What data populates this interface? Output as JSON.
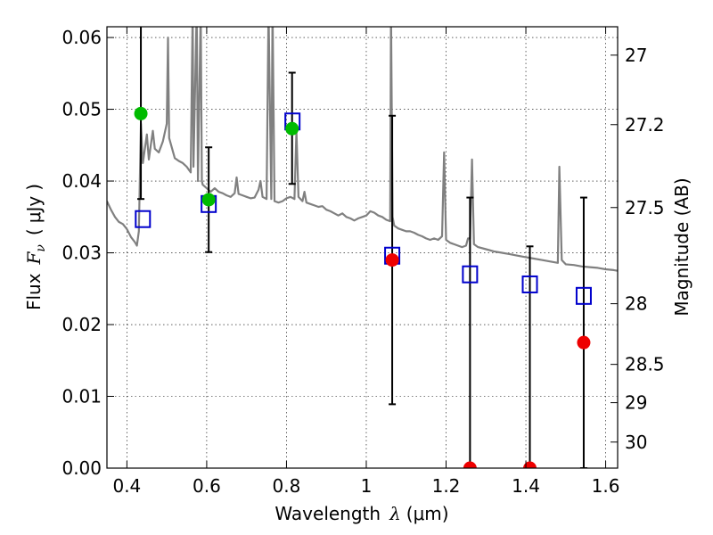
{
  "chart_data": {
    "type": "scatter",
    "xlabel_prefix": "Wavelength",
    "xlabel_symbol": "λ",
    "xlabel_unit": "(μm)",
    "ylabel_prefix": "Flux",
    "ylabel_symbol": "F",
    "ylabel_subscript": "ν",
    "ylabel_unit": "μJy",
    "y2label": "Magnitude (AB)",
    "xlim": [
      0.35,
      1.63
    ],
    "ylim": [
      0.0,
      0.0615
    ],
    "x_ticks": [
      0.4,
      0.6,
      0.8,
      1.0,
      1.2,
      1.4,
      1.6
    ],
    "x_tick_labels": [
      "0.4",
      "0.6",
      "0.8",
      "1",
      "1.2",
      "1.4",
      "1.6"
    ],
    "y_ticks": [
      0.0,
      0.01,
      0.02,
      0.03,
      0.04,
      0.05,
      0.06
    ],
    "y_tick_labels": [
      "0.00",
      "0.01",
      "0.02",
      "0.03",
      "0.04",
      "0.05",
      "0.06"
    ],
    "mag_ticks": [
      27,
      27.2,
      27.5,
      28,
      28.5,
      29,
      30
    ],
    "mag_tick_labels": [
      "27",
      "27.2",
      "27.5",
      "28",
      "28.5",
      "29",
      "30"
    ],
    "grid": true,
    "colors": {
      "model_line": "#808080",
      "model_points": "#0000cc",
      "detections": "#00bb00",
      "nondetections": "#ee0000",
      "errorbars": "#000000"
    },
    "model_spectrum": [
      [
        0.35,
        0.0372
      ],
      [
        0.36,
        0.036
      ],
      [
        0.37,
        0.035
      ],
      [
        0.38,
        0.0343
      ],
      [
        0.39,
        0.034
      ],
      [
        0.4,
        0.0333
      ],
      [
        0.41,
        0.0322
      ],
      [
        0.42,
        0.0315
      ],
      [
        0.425,
        0.031
      ],
      [
        0.43,
        0.033
      ],
      [
        0.435,
        0.048
      ],
      [
        0.44,
        0.0425
      ],
      [
        0.45,
        0.0465
      ],
      [
        0.455,
        0.043
      ],
      [
        0.46,
        0.045
      ],
      [
        0.465,
        0.047
      ],
      [
        0.47,
        0.0445
      ],
      [
        0.48,
        0.044
      ],
      [
        0.49,
        0.0455
      ],
      [
        0.5,
        0.048
      ],
      [
        0.503,
        0.06
      ],
      [
        0.506,
        0.046
      ],
      [
        0.52,
        0.0432
      ],
      [
        0.53,
        0.0428
      ],
      [
        0.54,
        0.0425
      ],
      [
        0.55,
        0.042
      ],
      [
        0.56,
        0.0412
      ],
      [
        0.565,
        0.064
      ],
      [
        0.567,
        0.042
      ],
      [
        0.575,
        0.064
      ],
      [
        0.578,
        0.04
      ],
      [
        0.585,
        0.064
      ],
      [
        0.588,
        0.04
      ],
      [
        0.59,
        0.0395
      ],
      [
        0.6,
        0.039
      ],
      [
        0.61,
        0.0385
      ],
      [
        0.62,
        0.039
      ],
      [
        0.63,
        0.0385
      ],
      [
        0.64,
        0.0383
      ],
      [
        0.65,
        0.038
      ],
      [
        0.66,
        0.0378
      ],
      [
        0.67,
        0.0383
      ],
      [
        0.675,
        0.0405
      ],
      [
        0.68,
        0.0382
      ],
      [
        0.69,
        0.038
      ],
      [
        0.7,
        0.0378
      ],
      [
        0.71,
        0.0376
      ],
      [
        0.72,
        0.0377
      ],
      [
        0.73,
        0.0388
      ],
      [
        0.735,
        0.04
      ],
      [
        0.74,
        0.0378
      ],
      [
        0.75,
        0.0375
      ],
      [
        0.755,
        0.064
      ],
      [
        0.762,
        0.0375
      ],
      [
        0.765,
        0.064
      ],
      [
        0.77,
        0.0372
      ],
      [
        0.78,
        0.037
      ],
      [
        0.79,
        0.0372
      ],
      [
        0.8,
        0.0376
      ],
      [
        0.81,
        0.0378
      ],
      [
        0.82,
        0.0375
      ],
      [
        0.825,
        0.047
      ],
      [
        0.83,
        0.0378
      ],
      [
        0.84,
        0.0372
      ],
      [
        0.845,
        0.0385
      ],
      [
        0.85,
        0.037
      ],
      [
        0.86,
        0.0368
      ],
      [
        0.87,
        0.0366
      ],
      [
        0.88,
        0.0364
      ],
      [
        0.89,
        0.0365
      ],
      [
        0.9,
        0.036
      ],
      [
        0.91,
        0.0358
      ],
      [
        0.92,
        0.0355
      ],
      [
        0.93,
        0.0352
      ],
      [
        0.94,
        0.0355
      ],
      [
        0.95,
        0.035
      ],
      [
        0.96,
        0.0348
      ],
      [
        0.97,
        0.0345
      ],
      [
        0.98,
        0.0348
      ],
      [
        0.99,
        0.035
      ],
      [
        1.0,
        0.0352
      ],
      [
        1.01,
        0.0358
      ],
      [
        1.02,
        0.0356
      ],
      [
        1.03,
        0.0352
      ],
      [
        1.04,
        0.035
      ],
      [
        1.05,
        0.0346
      ],
      [
        1.06,
        0.0344
      ],
      [
        1.062,
        0.064
      ],
      [
        1.066,
        0.035
      ],
      [
        1.07,
        0.0338
      ],
      [
        1.08,
        0.0334
      ],
      [
        1.09,
        0.0332
      ],
      [
        1.1,
        0.033
      ],
      [
        1.11,
        0.033
      ],
      [
        1.12,
        0.0328
      ],
      [
        1.13,
        0.0325
      ],
      [
        1.14,
        0.0323
      ],
      [
        1.15,
        0.032
      ],
      [
        1.16,
        0.0318
      ],
      [
        1.17,
        0.032
      ],
      [
        1.18,
        0.0318
      ],
      [
        1.19,
        0.0323
      ],
      [
        1.195,
        0.044
      ],
      [
        1.2,
        0.0318
      ],
      [
        1.21,
        0.0314
      ],
      [
        1.22,
        0.0312
      ],
      [
        1.23,
        0.031
      ],
      [
        1.24,
        0.0308
      ],
      [
        1.25,
        0.031
      ],
      [
        1.255,
        0.032
      ],
      [
        1.26,
        0.032
      ],
      [
        1.265,
        0.043
      ],
      [
        1.27,
        0.0312
      ],
      [
        1.28,
        0.0308
      ],
      [
        1.3,
        0.0305
      ],
      [
        1.32,
        0.0302
      ],
      [
        1.34,
        0.03
      ],
      [
        1.36,
        0.0298
      ],
      [
        1.38,
        0.0296
      ],
      [
        1.4,
        0.0294
      ],
      [
        1.42,
        0.0292
      ],
      [
        1.44,
        0.029
      ],
      [
        1.46,
        0.0288
      ],
      [
        1.48,
        0.0286
      ],
      [
        1.484,
        0.042
      ],
      [
        1.49,
        0.029
      ],
      [
        1.5,
        0.0284
      ],
      [
        1.52,
        0.0283
      ],
      [
        1.54,
        0.0281
      ],
      [
        1.56,
        0.028
      ],
      [
        1.58,
        0.0279
      ],
      [
        1.6,
        0.0277
      ],
      [
        1.62,
        0.0276
      ],
      [
        1.63,
        0.0275
      ]
    ],
    "model_points": [
      {
        "x": 0.44,
        "y": 0.0347
      },
      {
        "x": 0.605,
        "y": 0.0368
      },
      {
        "x": 0.815,
        "y": 0.0483
      },
      {
        "x": 1.065,
        "y": 0.0296
      },
      {
        "x": 1.26,
        "y": 0.027
      },
      {
        "x": 1.41,
        "y": 0.0256
      },
      {
        "x": 1.545,
        "y": 0.024
      }
    ],
    "observations": [
      {
        "x": 0.435,
        "y": 0.0494,
        "err_low": 0.0375,
        "err_high": 0.064,
        "detected": true
      },
      {
        "x": 0.605,
        "y": 0.0374,
        "err_low": 0.0301,
        "err_high": 0.0447,
        "detected": true
      },
      {
        "x": 0.814,
        "y": 0.0473,
        "err_low": 0.0396,
        "err_high": 0.0551,
        "detected": true
      },
      {
        "x": 1.065,
        "y": 0.029,
        "err_low": 0.0089,
        "err_high": 0.0491,
        "detected": false
      },
      {
        "x": 1.26,
        "y": 0.0,
        "err_low": 0.0,
        "err_high": 0.0377,
        "detected": false
      },
      {
        "x": 1.41,
        "y": 0.0,
        "err_low": 0.0,
        "err_high": 0.0309,
        "detected": false
      },
      {
        "x": 1.545,
        "y": 0.0175,
        "err_low": 0.0,
        "err_high": 0.0377,
        "detected": false
      }
    ]
  }
}
